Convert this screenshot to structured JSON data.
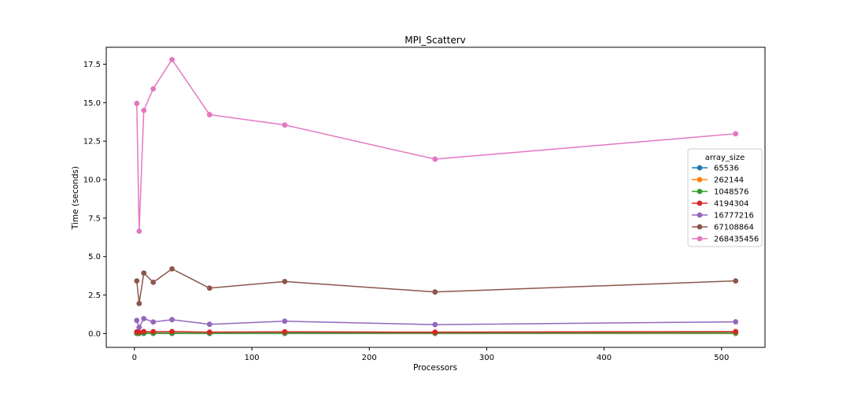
{
  "chart_data": {
    "type": "line",
    "title": "MPI_Scatterv",
    "xlabel": "Processors",
    "ylabel": "Time (seconds)",
    "xlim": [
      -24,
      537
    ],
    "ylim": [
      -0.9,
      18.6
    ],
    "xticks": [
      0,
      100,
      200,
      300,
      400,
      500
    ],
    "yticks": [
      0.0,
      2.5,
      5.0,
      7.5,
      10.0,
      12.5,
      15.0,
      17.5
    ],
    "grid": false,
    "legend": {
      "title": "array_size",
      "placement": "center-right"
    },
    "x": [
      2,
      4,
      8,
      16,
      32,
      64,
      128,
      256,
      512
    ],
    "series": [
      {
        "name": "65536",
        "color": "#1f77b4",
        "values": [
          0.005,
          0.005,
          0.005,
          0.005,
          0.005,
          0.005,
          0.005,
          0.005,
          0.005
        ]
      },
      {
        "name": "262144",
        "color": "#ff7f0e",
        "values": [
          0.02,
          0.015,
          0.02,
          0.02,
          0.02,
          0.02,
          0.02,
          0.02,
          0.02
        ]
      },
      {
        "name": "1048576",
        "color": "#2ca02c",
        "values": [
          0.03,
          0.02,
          0.035,
          0.03,
          0.03,
          0.02,
          0.03,
          0.04,
          0.05
        ]
      },
      {
        "name": "4194304",
        "color": "#d62728",
        "values": [
          0.11,
          0.08,
          0.13,
          0.12,
          0.13,
          0.09,
          0.11,
          0.09,
          0.13
        ]
      },
      {
        "name": "16777216",
        "color": "#9467bd",
        "values": [
          0.85,
          0.4,
          0.97,
          0.75,
          0.9,
          0.6,
          0.8,
          0.58,
          0.76
        ]
      },
      {
        "name": "67108864",
        "color": "#8c564b",
        "values": [
          3.42,
          1.95,
          3.93,
          3.33,
          4.2,
          2.95,
          3.38,
          2.7,
          3.42
        ]
      },
      {
        "name": "268435456",
        "color": "#e377c2",
        "values": [
          14.95,
          6.65,
          14.5,
          15.9,
          17.8,
          14.22,
          13.55,
          11.33,
          12.98
        ]
      }
    ]
  }
}
